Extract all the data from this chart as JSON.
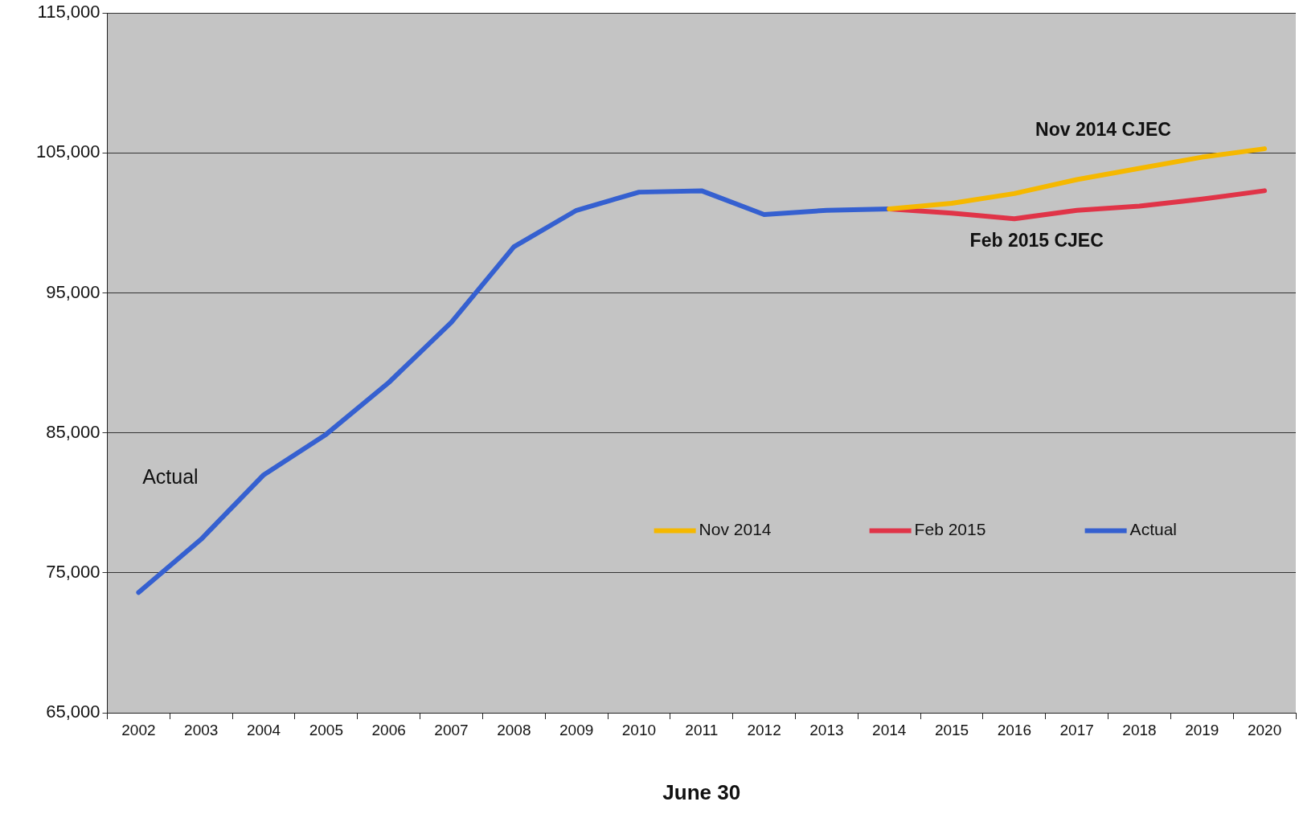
{
  "chart_data": {
    "type": "line",
    "xlabel": "June 30",
    "categories": [
      "2002",
      "2003",
      "2004",
      "2005",
      "2006",
      "2007",
      "2008",
      "2009",
      "2010",
      "2011",
      "2012",
      "2013",
      "2014",
      "2015",
      "2016",
      "2017",
      "2018",
      "2019",
      "2020"
    ],
    "series": [
      {
        "name": "Nov 2014",
        "color": "#f5b800",
        "values": [
          null,
          null,
          null,
          null,
          null,
          null,
          null,
          null,
          null,
          null,
          null,
          null,
          101000,
          101400,
          102100,
          103100,
          103900,
          104700,
          105300
        ]
      },
      {
        "name": "Feb 2015",
        "color": "#e03448",
        "values": [
          null,
          null,
          null,
          null,
          null,
          null,
          null,
          null,
          null,
          null,
          null,
          null,
          101000,
          100700,
          100300,
          100900,
          101200,
          101700,
          102300
        ]
      },
      {
        "name": "Actual",
        "color": "#3560d0",
        "values": [
          73600,
          77400,
          82000,
          84900,
          88600,
          92900,
          98300,
          100900,
          102200,
          102300,
          100600,
          100900,
          101000,
          null,
          null,
          null,
          null,
          null,
          null
        ]
      }
    ],
    "ylim": [
      65000,
      115000
    ],
    "yticks": [
      {
        "value": 65000,
        "label": "65,000"
      },
      {
        "value": 75000,
        "label": "75,000"
      },
      {
        "value": 85000,
        "label": "85,000"
      },
      {
        "value": 95000,
        "label": "95,000"
      },
      {
        "value": 105000,
        "label": "105,000"
      },
      {
        "value": 115000,
        "label": "115,000"
      }
    ],
    "grid": "y",
    "legend": "bottom right",
    "marker": "none",
    "line_style": "solid",
    "annotations": [
      "Nov 2014 CJEC",
      "Feb 2015 CJEC",
      "Actual"
    ]
  }
}
